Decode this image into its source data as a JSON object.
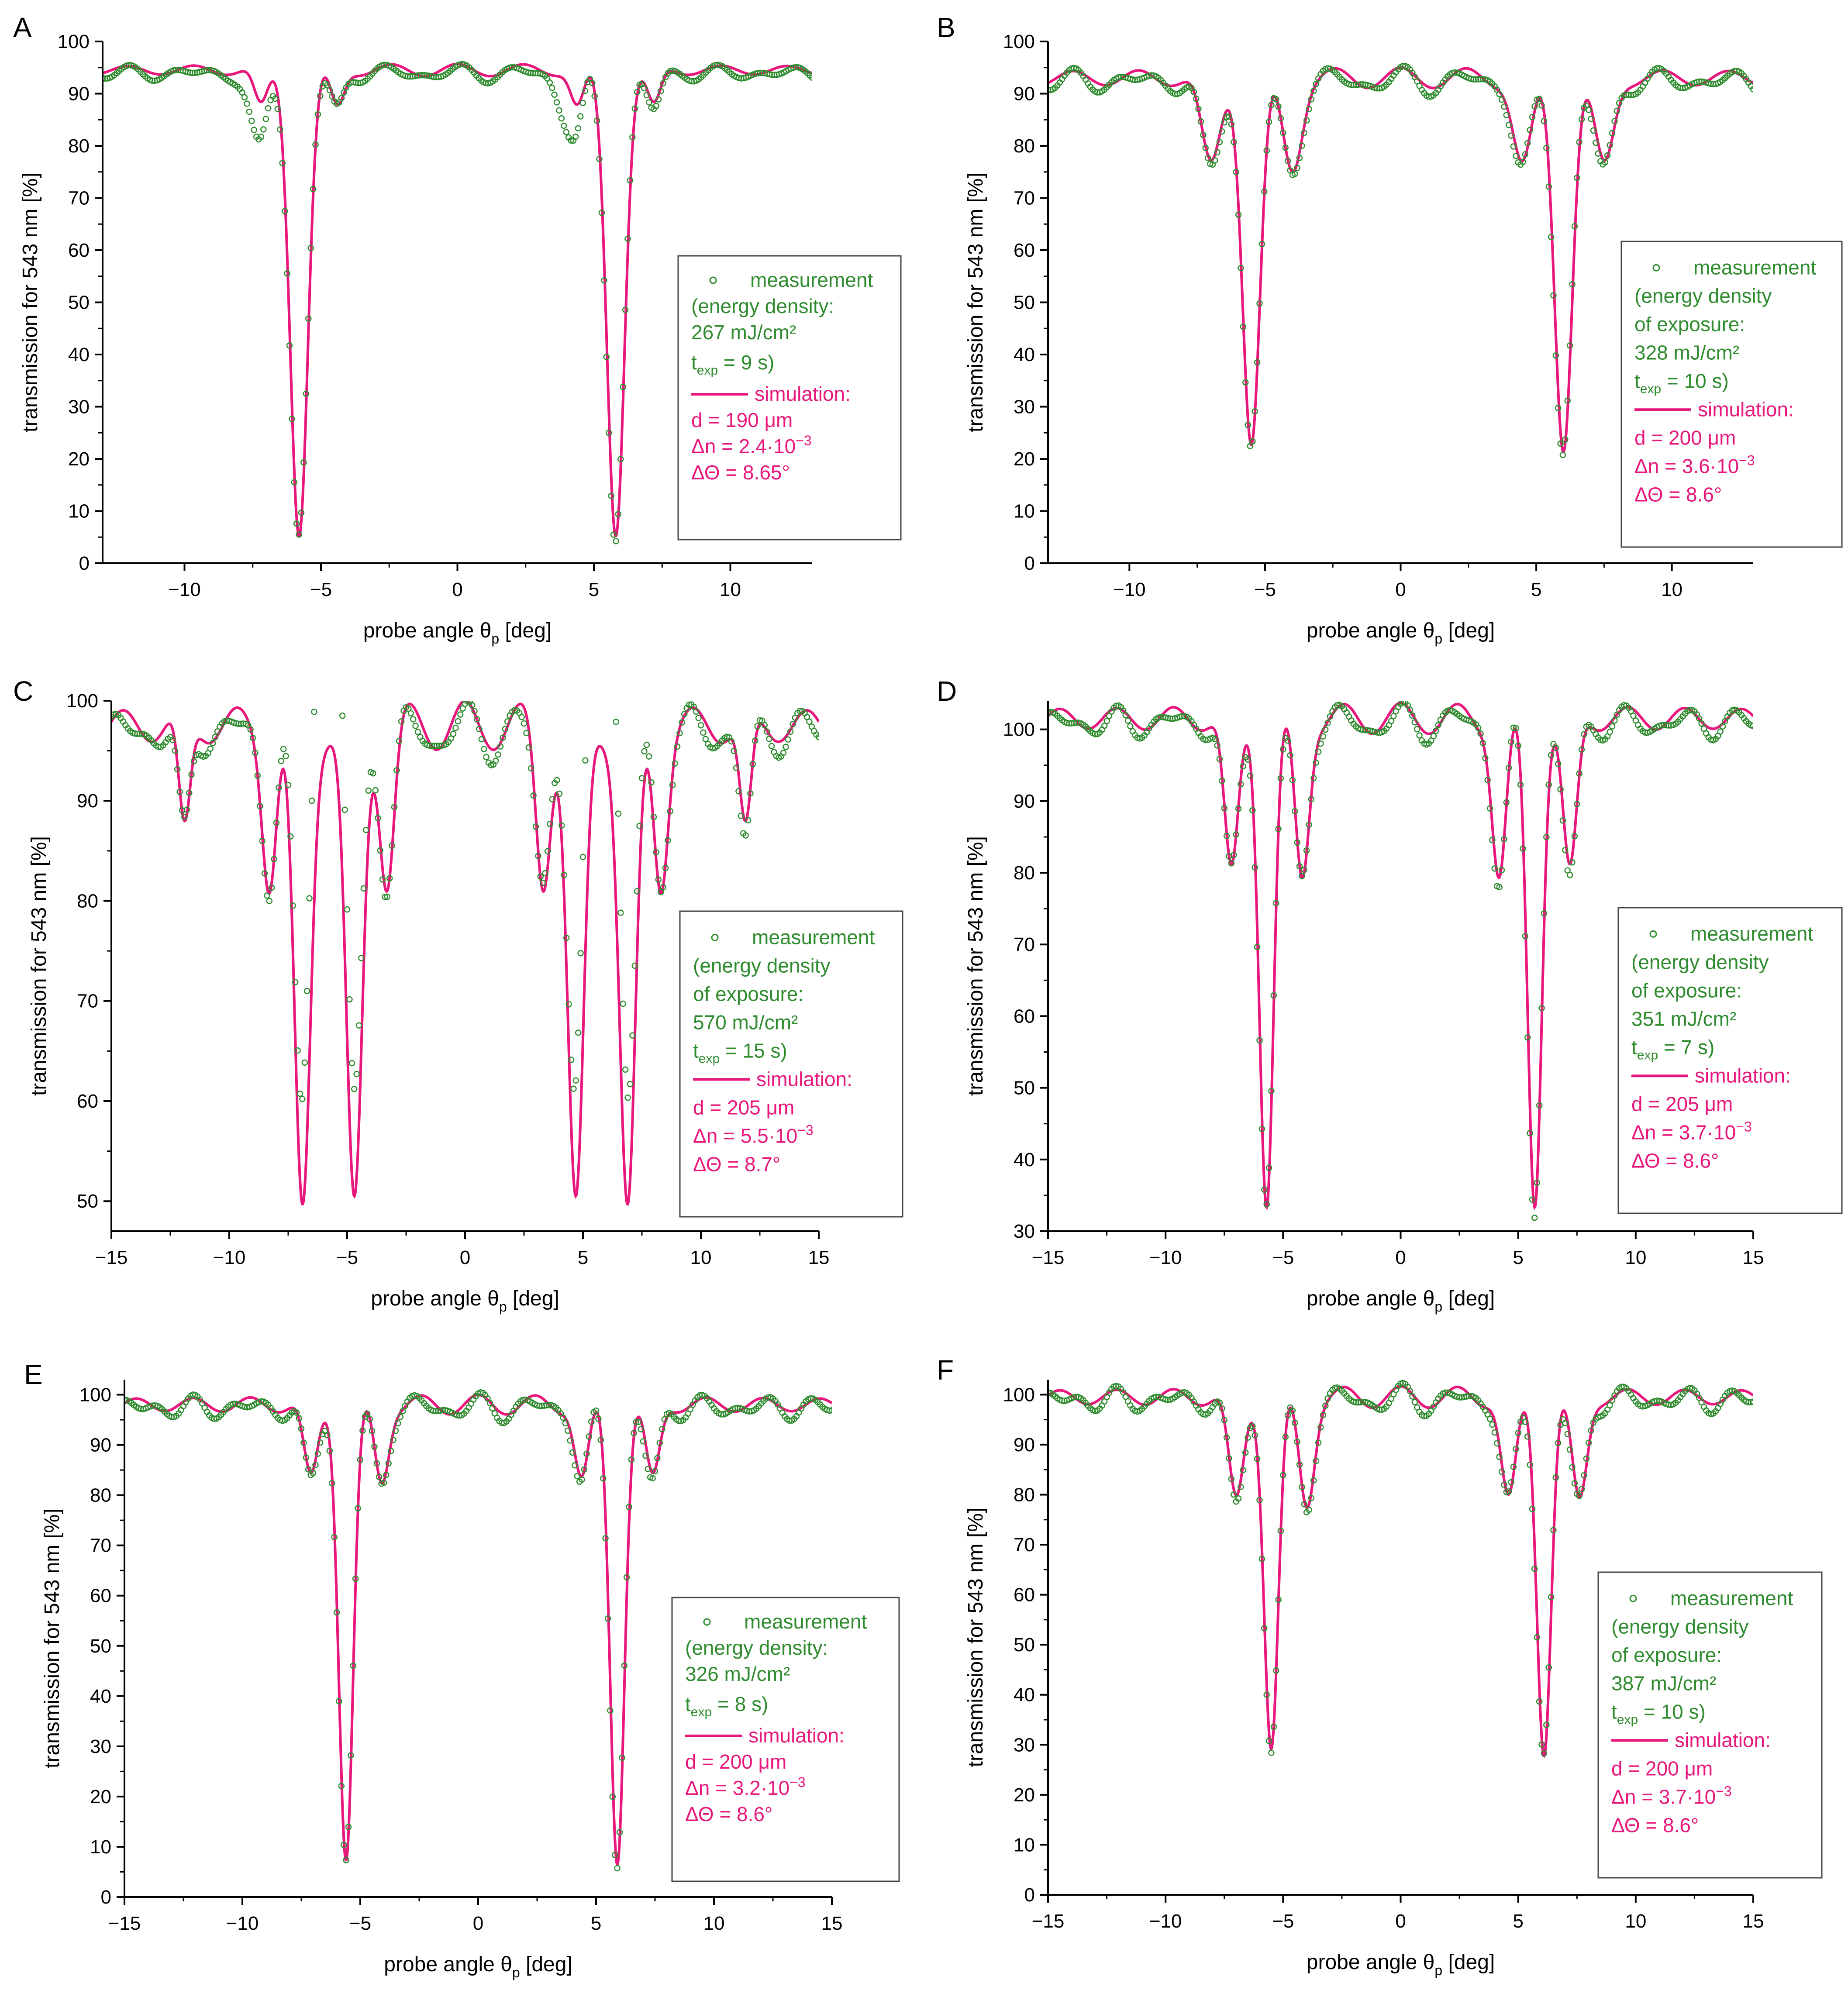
{
  "figure": {
    "background": "#ffffff"
  },
  "style": {
    "measurement_color": "#2e8b2e",
    "simulation_color": "#e8177c",
    "axis_color": "#000000"
  },
  "chart_data": [
    {
      "panel_label": "A",
      "type": "line",
      "xlim": [
        -13,
        13
      ],
      "ylim": [
        0,
        100
      ],
      "xticks": [
        -10,
        -5,
        0,
        5,
        10
      ],
      "xtick_labels": [
        "−10",
        "−5",
        "0",
        "5",
        "10"
      ],
      "yticks": [
        0,
        10,
        20,
        30,
        40,
        50,
        60,
        70,
        80,
        90,
        100
      ],
      "ytick_labels": [
        "0",
        "10",
        "20",
        "30",
        "40",
        "50",
        "60",
        "70",
        "80",
        "90",
        "100"
      ],
      "xlabel": "probe angle θ",
      "xlabel_sub": "p",
      "xlabel_suffix": " [deg]",
      "ylabel": "transmission for 543 nm [%]",
      "sim": {
        "base": 94.5,
        "ripple": 1.2,
        "dips": [
          {
            "x": -5.8,
            "depth": 88.5,
            "width": 0.32
          },
          {
            "x": 5.8,
            "depth": 88.5,
            "width": 0.32
          },
          {
            "x": -7.2,
            "depth": 7.0,
            "width": 0.25
          },
          {
            "x": -4.4,
            "depth": 7.0,
            "width": 0.25
          },
          {
            "x": 4.4,
            "depth": 7.0,
            "width": 0.25
          },
          {
            "x": 7.2,
            "depth": 7.0,
            "width": 0.25
          }
        ]
      },
      "meas": {
        "extra": [
          {
            "x": -7.4,
            "depth": 8,
            "width": 0.35
          },
          {
            "x": 4.0,
            "depth": 8,
            "width": 0.35
          }
        ],
        "noise": 0.8,
        "phase": 0.4
      },
      "legend": {
        "measurement": "measurement",
        "meas_lines": [
          "(energy density:",
          "267 mJ/cm²"
        ],
        "texp_prefix": "t",
        "texp_sub": "exp",
        "texp_value": " = 9 s)",
        "simulation": "simulation:",
        "d": "d = 190 μm",
        "dn_base": "Δn = 2.4·10",
        "dn_exp": "−3",
        "dtheta": "ΔΘ = 8.65°"
      }
    },
    {
      "panel_label": "B",
      "type": "line",
      "xlim": [
        -13,
        13
      ],
      "ylim": [
        0,
        100
      ],
      "xticks": [
        -10,
        -5,
        0,
        5,
        10
      ],
      "xtick_labels": [
        "−10",
        "−5",
        "0",
        "5",
        "10"
      ],
      "yticks": [
        0,
        10,
        20,
        30,
        40,
        50,
        60,
        70,
        80,
        90,
        100
      ],
      "ytick_labels": [
        "0",
        "10",
        "20",
        "30",
        "40",
        "50",
        "60",
        "70",
        "80",
        "90",
        "100"
      ],
      "xlabel": "probe angle θ",
      "xlabel_sub": "p",
      "xlabel_suffix": " [deg]",
      "ylabel": "transmission for 543 nm [%]",
      "sim": {
        "base": 93,
        "ripple": 2.0,
        "dips": [
          {
            "x": -5.5,
            "depth": 70,
            "width": 0.32
          },
          {
            "x": 6.0,
            "depth": 70,
            "width": 0.32
          },
          {
            "x": -7.0,
            "depth": 17,
            "width": 0.35
          },
          {
            "x": -4.0,
            "depth": 17,
            "width": 0.35
          },
          {
            "x": 4.5,
            "depth": 17,
            "width": 0.35
          },
          {
            "x": 7.5,
            "depth": 17,
            "width": 0.35
          }
        ]
      },
      "meas": {
        "extra": [],
        "noise": 1.2,
        "phase": 0.6
      },
      "legend": {
        "measurement": "measurement",
        "meas_lines": [
          "(energy density",
          "of exposure:",
          "328 mJ/cm²"
        ],
        "texp_prefix": "t",
        "texp_sub": "exp",
        "texp_value": " = 10 s)",
        "simulation": "simulation:",
        "d": "d = 200 μm",
        "dn_base": "Δn = 3.6·10",
        "dn_exp": "−3",
        "dtheta": "ΔΘ = 8.6°"
      }
    },
    {
      "panel_label": "C",
      "type": "line",
      "xlim": [
        -15,
        15
      ],
      "ylim": [
        47,
        100
      ],
      "xticks": [
        -15,
        -10,
        -5,
        0,
        5,
        10,
        15
      ],
      "xtick_labels": [
        "−15",
        "−10",
        "−5",
        "0",
        "5",
        "10",
        "15"
      ],
      "yticks": [
        50,
        60,
        70,
        80,
        90,
        100
      ],
      "ytick_labels": [
        "50",
        "60",
        "70",
        "80",
        "90",
        "100"
      ],
      "xlabel": "probe angle θ",
      "xlabel_sub": "p",
      "xlabel_suffix": " [deg]",
      "ylabel": "transmission for 543 nm [%]",
      "sim": {
        "base": 97.5,
        "ripple": 2.5,
        "dips": [
          {
            "x": -6.9,
            "depth": 49,
            "width": 0.34
          },
          {
            "x": -4.7,
            "depth": 49,
            "width": 0.34
          },
          {
            "x": 4.7,
            "depth": 49,
            "width": 0.34
          },
          {
            "x": 6.9,
            "depth": 49,
            "width": 0.34
          },
          {
            "x": -8.3,
            "depth": 15,
            "width": 0.3
          },
          {
            "x": -3.3,
            "depth": 15,
            "width": 0.3
          },
          {
            "x": 3.3,
            "depth": 15,
            "width": 0.3
          },
          {
            "x": 8.3,
            "depth": 15,
            "width": 0.3
          },
          {
            "x": -11.9,
            "depth": 11,
            "width": 0.25
          },
          {
            "x": 11.9,
            "depth": 11,
            "width": 0.25
          }
        ]
      },
      "meas": {
        "extra": [
          {
            "x": -5.8,
            "depth": -24,
            "width": 0.9
          },
          {
            "x": 5.8,
            "depth": -24,
            "width": 0.9
          }
        ],
        "noise": 1.0,
        "phase": 0.3
      },
      "legend": {
        "measurement": "measurement",
        "meas_lines": [
          "(energy density",
          "of exposure:",
          "570 mJ/cm²"
        ],
        "texp_prefix": "t",
        "texp_sub": "exp",
        "texp_value": " = 15 s)",
        "simulation": "simulation:",
        "d": "d = 205 μm",
        "dn_base": "Δn = 5.5·10",
        "dn_exp": "−3",
        "dtheta": "ΔΘ = 8.7°"
      }
    },
    {
      "panel_label": "D",
      "type": "line",
      "xlim": [
        -15,
        15
      ],
      "ylim": [
        30,
        104
      ],
      "xticks": [
        -15,
        -10,
        -5,
        0,
        5,
        10,
        15
      ],
      "xtick_labels": [
        "−15",
        "−10",
        "−5",
        "0",
        "5",
        "10",
        "15"
      ],
      "yticks": [
        30,
        40,
        50,
        60,
        70,
        80,
        90,
        100
      ],
      "ytick_labels": [
        "30",
        "40",
        "50",
        "60",
        "70",
        "80",
        "90",
        "100"
      ],
      "xlabel": "probe angle θ",
      "xlabel_sub": "p",
      "xlabel_suffix": " [deg]",
      "ylabel": "transmission for 543 nm [%]",
      "sim": {
        "base": 101.5,
        "ripple": 2.2,
        "dips": [
          {
            "x": -5.7,
            "depth": 67,
            "width": 0.3
          },
          {
            "x": 5.7,
            "depth": 67,
            "width": 0.3
          },
          {
            "x": -7.2,
            "depth": 22,
            "width": 0.3
          },
          {
            "x": -4.2,
            "depth": 22,
            "width": 0.3
          },
          {
            "x": 4.2,
            "depth": 22,
            "width": 0.3
          },
          {
            "x": 7.2,
            "depth": 22,
            "width": 0.3
          }
        ]
      },
      "meas": {
        "extra": [],
        "noise": 1.0,
        "phase": 0.5
      },
      "legend": {
        "measurement": "measurement",
        "meas_lines": [
          "(energy density",
          "of exposure:",
          "351 mJ/cm²"
        ],
        "texp_prefix": "t",
        "texp_sub": "exp",
        "texp_value": " = 7 s)",
        "simulation": "simulation:",
        "d": "d = 205 μm",
        "dn_base": "Δn = 3.7·10",
        "dn_exp": "−3",
        "dtheta": "ΔΘ = 8.6°"
      }
    },
    {
      "panel_label": "E",
      "type": "line",
      "xlim": [
        -15,
        15
      ],
      "ylim": [
        0,
        103
      ],
      "xticks": [
        -15,
        -10,
        -5,
        0,
        5,
        10,
        15
      ],
      "xtick_labels": [
        "−15",
        "−10",
        "−5",
        "0",
        "5",
        "10",
        "15"
      ],
      "yticks": [
        0,
        10,
        20,
        30,
        40,
        50,
        60,
        70,
        80,
        90,
        100
      ],
      "ytick_labels": [
        "0",
        "10",
        "20",
        "30",
        "40",
        "50",
        "60",
        "70",
        "80",
        "90",
        "100"
      ],
      "xlabel": "probe angle θ",
      "xlabel_sub": "p",
      "xlabel_suffix": " [deg]",
      "ylabel": "transmission for 543 nm [%]",
      "sim": {
        "base": 98,
        "ripple": 2.0,
        "dips": [
          {
            "x": -5.6,
            "depth": 90,
            "width": 0.3
          },
          {
            "x": 5.9,
            "depth": 90,
            "width": 0.3
          },
          {
            "x": -7.1,
            "depth": 15,
            "width": 0.3
          },
          {
            "x": -4.1,
            "depth": 15,
            "width": 0.3
          },
          {
            "x": 4.4,
            "depth": 15,
            "width": 0.3
          },
          {
            "x": 7.4,
            "depth": 15,
            "width": 0.3
          }
        ]
      },
      "meas": {
        "extra": [],
        "noise": 1.3,
        "phase": 0.7
      },
      "legend": {
        "measurement": "measurement",
        "meas_lines": [
          "(energy density:",
          "326 mJ/cm²"
        ],
        "texp_prefix": "t",
        "texp_sub": "exp",
        "texp_value": " = 8 s)",
        "simulation": "simulation:",
        "d": "d = 200 μm",
        "dn_base": "Δn = 3.2·10",
        "dn_exp": "−3",
        "dtheta": "ΔΘ = 8.6°"
      }
    },
    {
      "panel_label": "F",
      "type": "line",
      "xlim": [
        -15,
        15
      ],
      "ylim": [
        0,
        103
      ],
      "xticks": [
        -15,
        -10,
        -5,
        0,
        5,
        10,
        15
      ],
      "xtick_labels": [
        "−15",
        "−10",
        "−5",
        "0",
        "5",
        "10",
        "15"
      ],
      "yticks": [
        0,
        10,
        20,
        30,
        40,
        50,
        60,
        70,
        80,
        90,
        100
      ],
      "ytick_labels": [
        "0",
        "10",
        "20",
        "30",
        "40",
        "50",
        "60",
        "70",
        "80",
        "90",
        "100"
      ],
      "xlabel": "probe angle θ",
      "xlabel_sub": "p",
      "xlabel_suffix": " [deg]",
      "ylabel": "transmission for 543 nm [%]",
      "sim": {
        "base": 99.5,
        "ripple": 2.2,
        "dips": [
          {
            "x": -5.5,
            "depth": 70,
            "width": 0.3
          },
          {
            "x": 6.1,
            "depth": 70,
            "width": 0.3
          },
          {
            "x": -7.0,
            "depth": 21,
            "width": 0.32
          },
          {
            "x": -4.0,
            "depth": 21,
            "width": 0.32
          },
          {
            "x": 4.6,
            "depth": 21,
            "width": 0.32
          },
          {
            "x": 7.6,
            "depth": 21,
            "width": 0.32
          }
        ]
      },
      "meas": {
        "extra": [],
        "noise": 1.4,
        "phase": 0.9
      },
      "legend": {
        "measurement": "measurement",
        "meas_lines": [
          "(energy density",
          "of exposure:",
          "387 mJ/cm²"
        ],
        "texp_prefix": "t",
        "texp_sub": "exp",
        "texp_value": " = 10 s)",
        "simulation": "simulation:",
        "d": "d = 200 μm",
        "dn_base": "Δn = 3.7·10",
        "dn_exp": "−3",
        "dtheta": "ΔΘ = 8.6°"
      }
    }
  ]
}
